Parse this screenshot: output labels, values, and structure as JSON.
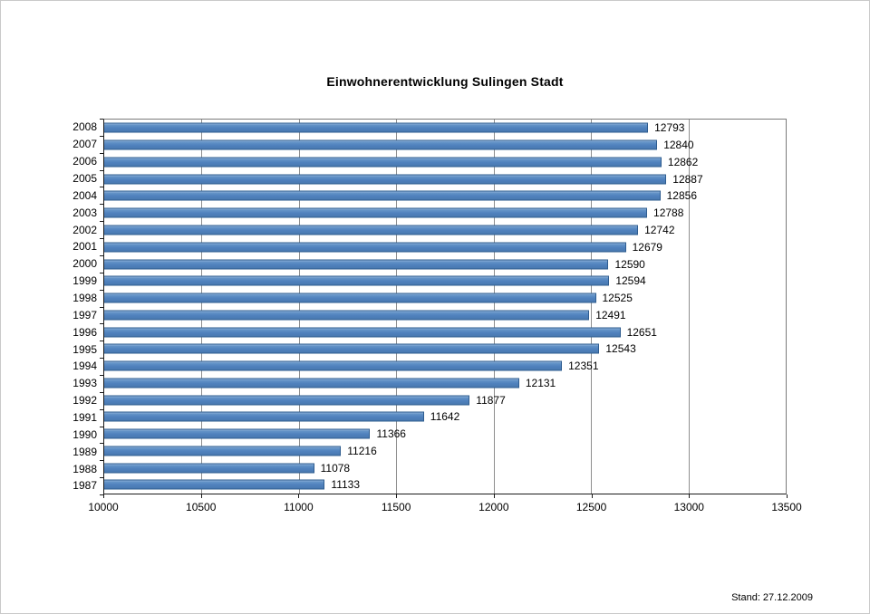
{
  "page": {
    "footnote": "Stand: 27.12.2009"
  },
  "chart_data": {
    "type": "bar",
    "orientation": "horizontal",
    "title": "Einwohnerentwicklung Sulingen Stadt",
    "categories": [
      "2008",
      "2007",
      "2006",
      "2005",
      "2004",
      "2003",
      "2002",
      "2001",
      "2000",
      "1999",
      "1998",
      "1997",
      "1996",
      "1995",
      "1994",
      "1993",
      "1992",
      "1991",
      "1990",
      "1989",
      "1988",
      "1987"
    ],
    "values": [
      12793,
      12840,
      12862,
      12887,
      12856,
      12788,
      12742,
      12679,
      12590,
      12594,
      12525,
      12491,
      12651,
      12543,
      12351,
      12131,
      11877,
      11642,
      11366,
      11216,
      11078,
      11133
    ],
    "value_labels": [
      "12793",
      "12840",
      "12862",
      "12887",
      "12856",
      "12788",
      "12742",
      "12679",
      "12590",
      "12594",
      "12525",
      "12491",
      "12651",
      "12543",
      "12351",
      "12131",
      "11877",
      "11642",
      "11366",
      "11216",
      "11078",
      "11133"
    ],
    "xlim": [
      10000,
      13500
    ],
    "x_ticks": [
      10000,
      10500,
      11000,
      11500,
      12000,
      12500,
      13000,
      13500
    ],
    "x_tick_labels": [
      "10000",
      "10500",
      "11000",
      "11500",
      "12000",
      "12500",
      "13000",
      "13500"
    ],
    "grid": true,
    "legend": "none",
    "bar_fill_color": "#4f81bd",
    "bar_border_color": "#2e5c8f",
    "gridline_color": "#8f8f8f",
    "annotation": "Stand: 27.12.2009"
  }
}
